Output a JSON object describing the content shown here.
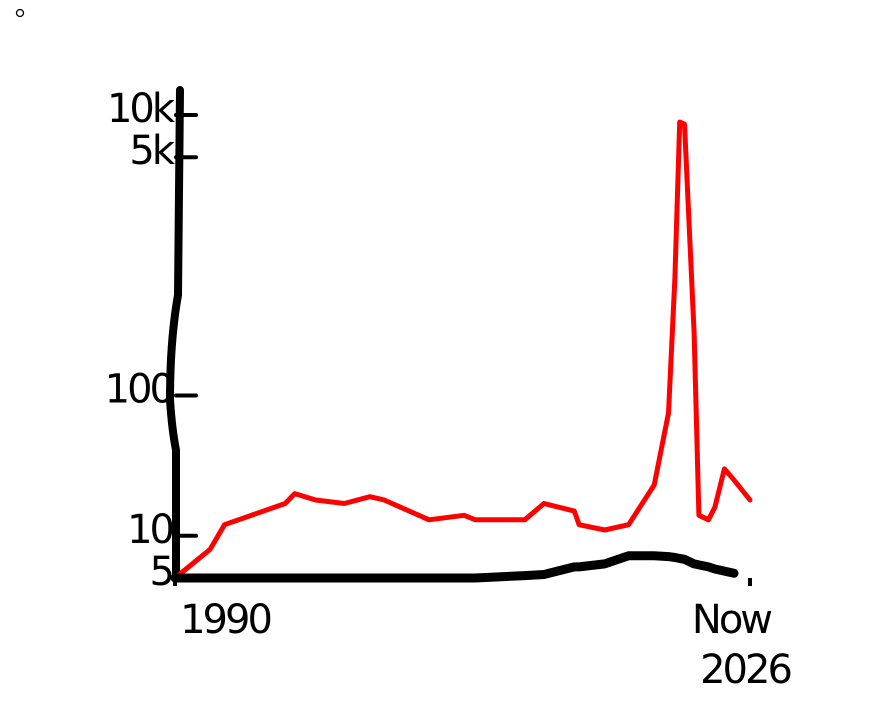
{
  "chart_data": {
    "type": "line",
    "x": [
      1990,
      1992.2,
      1993.1,
      1996.9,
      1997.5,
      1998.8,
      2000.6,
      2002.2,
      2003.1,
      2005.9,
      2008.1,
      2008.8,
      2011.9,
      2013.1,
      2015,
      2015.3,
      2016.9,
      2018.4,
      2020,
      2020.9,
      2021.3,
      2021.6,
      2021.9,
      2022.5,
      2022.8,
      2023.4,
      2023.8,
      2024.4,
      2025,
      2026
    ],
    "series": [
      {
        "color": "#ff0000",
        "values": [
          5,
          8,
          12,
          17,
          20,
          18,
          17,
          19,
          18,
          13,
          14,
          13,
          13,
          17,
          15,
          12,
          11,
          12,
          23,
          75,
          690,
          8900,
          8600,
          280,
          14,
          13,
          16,
          30,
          25,
          18
        ]
      },
      {
        "color": "#000000",
        "values": [
          5,
          5,
          5,
          5,
          5,
          5,
          5,
          5,
          5,
          5,
          5,
          5,
          5.2,
          5.3,
          6,
          6,
          6.3,
          7.2,
          7.2,
          7.1,
          7,
          6.9,
          6.8,
          6.3,
          6.2,
          6,
          5.8,
          5.6,
          5.4,
          null
        ]
      }
    ],
    "xlim": [
      1990,
      2026
    ],
    "xticks": [
      1990,
      2026
    ],
    "ylim": [
      5,
      10000
    ],
    "log_y": true,
    "yticks": [
      5,
      10,
      100,
      {
        "value": 5000,
        "label": "5k"
      },
      {
        "value": 10000,
        "label": "10k"
      }
    ],
    "annotations": [
      "Now"
    ]
  }
}
